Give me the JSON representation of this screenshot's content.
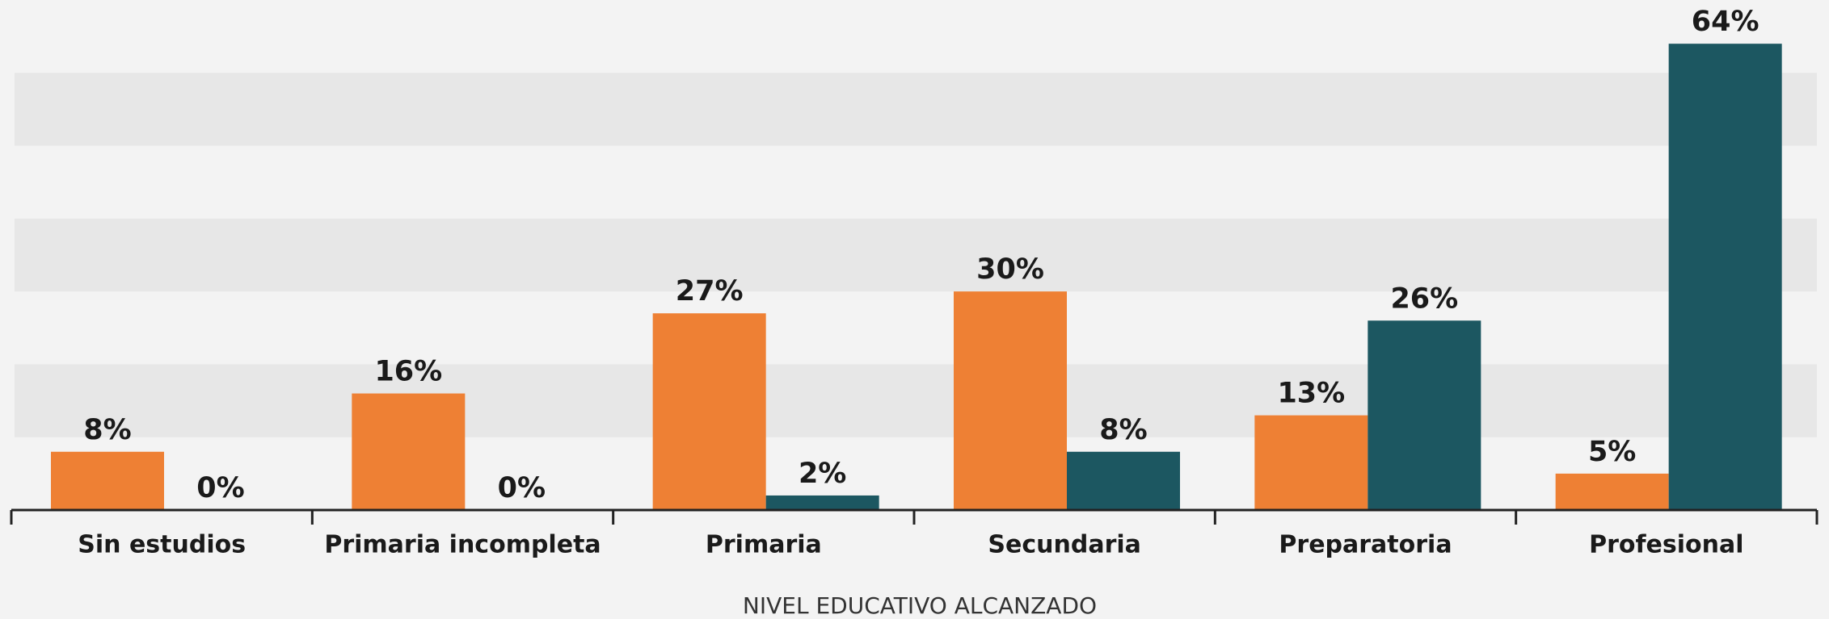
{
  "chart_data": {
    "type": "bar",
    "categories": [
      "Sin estudios",
      "Primaria incompleta",
      "Primaria",
      "Secundaria",
      "Preparatoria",
      "Profesional"
    ],
    "series": [
      {
        "color": "#ee8034",
        "values": [
          8,
          16,
          27,
          30,
          13,
          5
        ],
        "value_labels": [
          "8%",
          "16%",
          "27%",
          "30%",
          "13%",
          "5%"
        ]
      },
      {
        "color": "#1c5761",
        "values": [
          0,
          0,
          2,
          8,
          26,
          64
        ],
        "value_labels": [
          "0%",
          "0%",
          "2%",
          "8%",
          "26%",
          "64%"
        ]
      }
    ],
    "x_label": "NIVEL EDUCATIVO ALCANZADO",
    "ylim": [
      0,
      70
    ],
    "yticks": [
      0,
      10,
      20,
      30,
      40,
      50,
      60,
      70
    ],
    "grid": "bands"
  }
}
